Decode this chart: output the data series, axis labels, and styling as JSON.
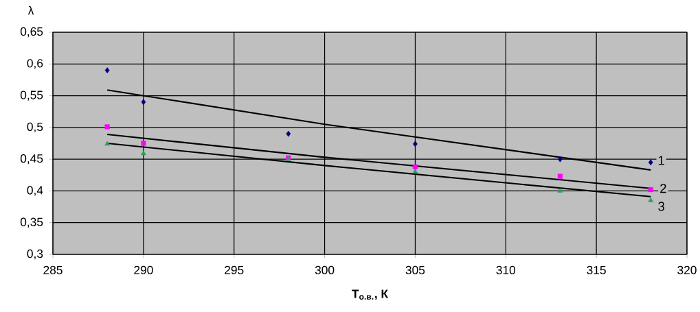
{
  "chart_data": {
    "type": "scatter",
    "xlabel": "Т$_{о.в.}$, К",
    "ylabel": "λ",
    "xlim": [
      285,
      320
    ],
    "xticks": [
      285,
      290,
      295,
      300,
      305,
      310,
      315,
      320
    ],
    "ylim": [
      0.3,
      0.65
    ],
    "yticks": [
      {
        "value": 0.3,
        "label": "0,3"
      },
      {
        "value": 0.35,
        "label": "0,35"
      },
      {
        "value": 0.4,
        "label": "0,4"
      },
      {
        "value": 0.45,
        "label": "0,45"
      },
      {
        "value": 0.5,
        "label": "0,5"
      },
      {
        "value": 0.55,
        "label": "0,55"
      },
      {
        "value": 0.6,
        "label": "0,6"
      },
      {
        "value": 0.65,
        "label": "0,65"
      }
    ],
    "grid": true,
    "legend": false,
    "series": [
      {
        "marker": "diamond",
        "color": "#000080",
        "x": [
          288,
          290,
          298,
          305,
          313,
          318
        ],
        "values": [
          0.59,
          0.54,
          0.49,
          0.474,
          0.45,
          0.445
        ]
      },
      {
        "marker": "square",
        "color": "#ff00ff",
        "x": [
          288,
          290,
          298,
          305,
          313,
          318
        ],
        "values": [
          0.501,
          0.475,
          0.452,
          0.438,
          0.423,
          0.402
        ]
      },
      {
        "marker": "triangle",
        "color": "#339966",
        "x": [
          288,
          290,
          298,
          305,
          313,
          318
        ],
        "values": [
          0.474,
          0.459,
          0.45,
          0.43,
          0.4,
          0.385
        ]
      },
      {
        "type": "line",
        "color": "#000000",
        "x": [
          288,
          300,
          318
        ],
        "values": [
          0.559,
          0.505,
          0.433
        ]
      },
      {
        "type": "line",
        "color": "#000000",
        "x": [
          288,
          300,
          318
        ],
        "values": [
          0.489,
          0.453,
          0.404
        ]
      },
      {
        "type": "line",
        "color": "#000000",
        "x": [
          288,
          300,
          318
        ],
        "values": [
          0.475,
          0.44,
          0.391
        ]
      }
    ],
    "annotations": [
      "1",
      "2",
      "3"
    ]
  }
}
